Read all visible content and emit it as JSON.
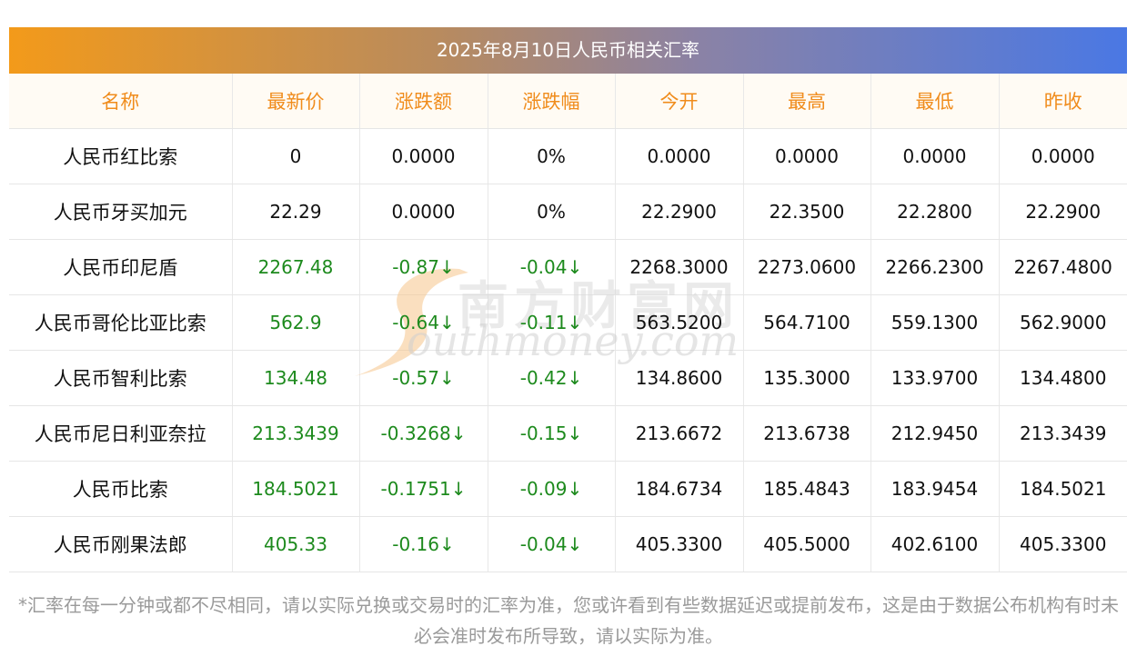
{
  "title": "2025年8月10日人民币相关汇率",
  "headers": [
    "名称",
    "最新价",
    "涨跌额",
    "涨跌幅",
    "今开",
    "最高",
    "最低",
    "昨收"
  ],
  "rows": [
    {
      "name": "人民币红比索",
      "latest": "0",
      "change": "0.0000",
      "pct": "0%",
      "open": "0.0000",
      "high": "0.0000",
      "low": "0.0000",
      "prev": "0.0000",
      "direction": "flat"
    },
    {
      "name": "人民币牙买加元",
      "latest": "22.29",
      "change": "0.0000",
      "pct": "0%",
      "open": "22.2900",
      "high": "22.3500",
      "low": "22.2800",
      "prev": "22.2900",
      "direction": "flat"
    },
    {
      "name": "人民币印尼盾",
      "latest": "2267.48",
      "change": "-0.87↓",
      "pct": "-0.04↓",
      "open": "2268.3000",
      "high": "2273.0600",
      "low": "2266.2300",
      "prev": "2267.4800",
      "direction": "down"
    },
    {
      "name": "人民币哥伦比亚比索",
      "latest": "562.9",
      "change": "-0.64↓",
      "pct": "-0.11↓",
      "open": "563.5200",
      "high": "564.7100",
      "low": "559.1300",
      "prev": "562.9000",
      "direction": "down"
    },
    {
      "name": "人民币智利比索",
      "latest": "134.48",
      "change": "-0.57↓",
      "pct": "-0.42↓",
      "open": "134.8600",
      "high": "135.3000",
      "low": "133.9700",
      "prev": "134.4800",
      "direction": "down"
    },
    {
      "name": "人民币尼日利亚奈拉",
      "latest": "213.3439",
      "change": "-0.3268↓",
      "pct": "-0.15↓",
      "open": "213.6672",
      "high": "213.6738",
      "low": "212.9450",
      "prev": "213.3439",
      "direction": "down"
    },
    {
      "name": "人民币比索",
      "latest": "184.5021",
      "change": "-0.1751↓",
      "pct": "-0.09↓",
      "open": "184.6734",
      "high": "185.4843",
      "low": "183.9454",
      "prev": "184.5021",
      "direction": "down"
    },
    {
      "name": "人民币刚果法郎",
      "latest": "405.33",
      "change": "-0.16↓",
      "pct": "-0.04↓",
      "open": "405.3300",
      "high": "405.5000",
      "low": "402.6100",
      "prev": "405.3300",
      "direction": "down"
    }
  ],
  "footnote": "*汇率在每一分钟或都不尽相同，请以实际兑换或交易时的汇率为准，您或许看到有些数据延迟或提前发布，这是由于数据公布机构有时未必会准时发布所导致，请以实际为准。",
  "watermark": {
    "cn": "南方财富网",
    "en": "outhmoney.com",
    "initial": "S"
  },
  "colors": {
    "header_text": "#f08c1c",
    "down": "#1d8a1d",
    "title_gradient_start": "#f39a1a",
    "title_gradient_end": "#4a78e4"
  }
}
